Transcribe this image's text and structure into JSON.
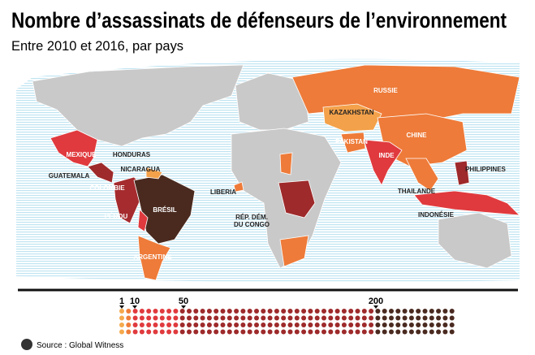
{
  "header": {
    "title": "Nombre d’assassinats de défenseurs de l’environnement",
    "subtitle": "Entre 2010 et 2016, par pays"
  },
  "map": {
    "labels": [
      "RUSSIE",
      "KAZAKHSTAN",
      "CHINE",
      "PAKISTAN",
      "INDE",
      "PHILIPPINES",
      "THAILANDE",
      "INDONÉSIE",
      "LIBERIA",
      "RÉP. DÉM.",
      "DU CONGO",
      "BRÉSIL",
      "MEXIQUE",
      "HONDURAS",
      "NICARAGUA",
      "GUATEMALA",
      "COLOMBIE",
      "PÉROU",
      "ARGENTINE"
    ]
  },
  "legend": {
    "ticks": [
      "1",
      "10",
      "50",
      "200"
    ]
  },
  "footer": {
    "source": "Source : Global Witness"
  }
}
